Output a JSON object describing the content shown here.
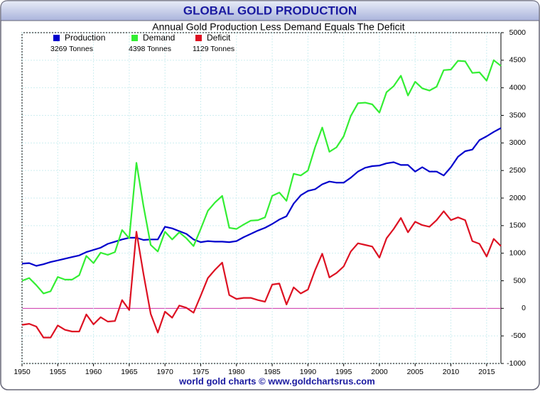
{
  "chart_data": {
    "type": "line",
    "title": "GLOBAL GOLD PRODUCTION",
    "subtitle": "Annual Gold Production Less Demand Equals The Deficit",
    "footer": "world gold charts © www.goldchartsrus.com",
    "legend_year": "2017",
    "x": [
      1950,
      1951,
      1952,
      1953,
      1954,
      1955,
      1956,
      1957,
      1958,
      1959,
      1960,
      1961,
      1962,
      1963,
      1964,
      1965,
      1966,
      1967,
      1968,
      1969,
      1970,
      1971,
      1972,
      1973,
      1974,
      1975,
      1976,
      1977,
      1978,
      1979,
      1980,
      1981,
      1982,
      1983,
      1984,
      1985,
      1986,
      1987,
      1988,
      1989,
      1990,
      1991,
      1992,
      1993,
      1994,
      1995,
      1996,
      1997,
      1998,
      1999,
      2000,
      2001,
      2002,
      2003,
      2004,
      2005,
      2006,
      2007,
      2008,
      2009,
      2010,
      2011,
      2012,
      2013,
      2014,
      2015,
      2016,
      2017
    ],
    "xlim": [
      1950,
      2017
    ],
    "xticks": [
      1950,
      1955,
      1960,
      1965,
      1970,
      1975,
      1980,
      1985,
      1990,
      1995,
      2000,
      2005,
      2010,
      2015
    ],
    "ylim": [
      -1000,
      5000
    ],
    "yticks": [
      -1000,
      -500,
      0,
      500,
      1000,
      1500,
      2000,
      2500,
      3000,
      3500,
      4000,
      4500,
      5000
    ],
    "grid": true,
    "series": [
      {
        "name": "Production",
        "color": "#0000cc",
        "value_label": "3269 Tonnes",
        "values": [
          810,
          820,
          770,
          800,
          840,
          870,
          900,
          930,
          960,
          1020,
          1060,
          1100,
          1170,
          1210,
          1250,
          1280,
          1280,
          1240,
          1250,
          1250,
          1480,
          1450,
          1400,
          1350,
          1250,
          1200,
          1220,
          1210,
          1210,
          1200,
          1220,
          1290,
          1350,
          1410,
          1460,
          1530,
          1610,
          1670,
          1900,
          2050,
          2130,
          2160,
          2250,
          2300,
          2280,
          2280,
          2370,
          2480,
          2550,
          2580,
          2590,
          2630,
          2650,
          2600,
          2600,
          2480,
          2560,
          2480,
          2480,
          2410,
          2560,
          2750,
          2850,
          2880,
          3050,
          3120,
          3200,
          3269
        ]
      },
      {
        "name": "Demand",
        "color": "#33ee33",
        "value_label": "4398 Tonnes",
        "values": [
          500,
          550,
          420,
          270,
          310,
          570,
          520,
          520,
          600,
          950,
          820,
          1010,
          970,
          1020,
          1420,
          1270,
          2640,
          1850,
          1150,
          1030,
          1390,
          1250,
          1380,
          1270,
          1130,
          1440,
          1770,
          1920,
          2040,
          1460,
          1440,
          1520,
          1590,
          1600,
          1650,
          2040,
          2100,
          1950,
          2440,
          2410,
          2500,
          2920,
          3280,
          2840,
          2920,
          3120,
          3490,
          3720,
          3730,
          3700,
          3550,
          3920,
          4030,
          4220,
          3860,
          4110,
          3990,
          3950,
          4020,
          4320,
          4330,
          4490,
          4480,
          4270,
          4280,
          4130,
          4500,
          4398
        ]
      },
      {
        "name": "Deficit",
        "color": "#dd1122",
        "value_label": "1129 Tonnes",
        "values": [
          -300,
          -280,
          -330,
          -530,
          -530,
          -310,
          -390,
          -420,
          -420,
          -110,
          -290,
          -160,
          -240,
          -230,
          150,
          -30,
          1390,
          620,
          -100,
          -440,
          -60,
          -170,
          50,
          10,
          -80,
          230,
          550,
          700,
          830,
          240,
          170,
          190,
          190,
          150,
          120,
          430,
          450,
          70,
          380,
          270,
          340,
          690,
          990,
          560,
          640,
          760,
          1030,
          1180,
          1150,
          1120,
          920,
          1270,
          1440,
          1640,
          1380,
          1570,
          1510,
          1480,
          1600,
          1760,
          1600,
          1650,
          1600,
          1220,
          1170,
          940,
          1260,
          1129
        ]
      }
    ]
  }
}
